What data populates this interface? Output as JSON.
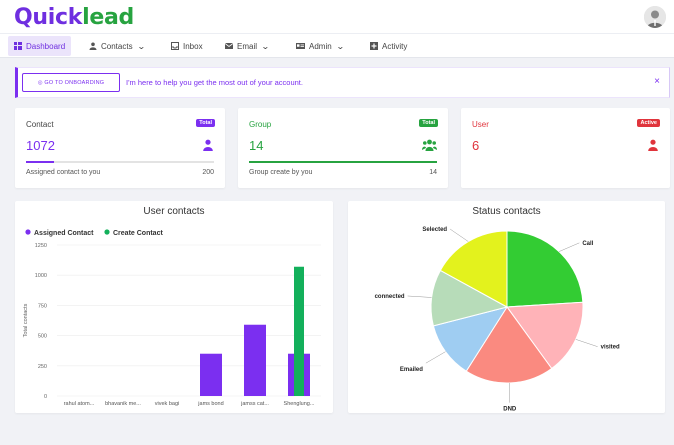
{
  "app": {
    "logo_prefix": "Q",
    "logo_mid": "uick",
    "logo_suffix": "lead"
  },
  "nav": {
    "items": [
      {
        "label": "Dashboard",
        "icon": "grid-icon",
        "active": true
      },
      {
        "label": "Contacts",
        "icon": "person-icon",
        "dropdown": true
      },
      {
        "label": "Inbox",
        "icon": "inbox-icon"
      },
      {
        "label": "Email",
        "icon": "envelope-icon",
        "dropdown": true
      },
      {
        "label": "Admin",
        "icon": "id-card-icon",
        "dropdown": true
      },
      {
        "label": "Activity",
        "icon": "plus-square-icon"
      }
    ]
  },
  "banner": {
    "button_label": "◎ GO TO ONBOARDING",
    "message": "I'm here to help you get the most out of your account.",
    "close": "×"
  },
  "stats": {
    "contact": {
      "title": "Contact",
      "badge": "Total",
      "value": "1072",
      "sub_label": "Assigned contact to you",
      "sub_value": "200",
      "progress": 0.15,
      "color": "#7b2ff0"
    },
    "group": {
      "title": "Group",
      "badge": "Total",
      "value": "14",
      "sub_label": "Group create by you",
      "sub_value": "14",
      "progress": 1.0,
      "color": "#27a340"
    },
    "user": {
      "title": "User",
      "badge": "Active",
      "value": "6",
      "color": "#e0343c"
    }
  },
  "user_chart": {
    "title": "User contacts",
    "chart_data": {
      "type": "bar",
      "title": "User contacts",
      "ylabel": "Total contacts",
      "xlabel": "",
      "ylim": [
        0,
        1250
      ],
      "yticks": [
        "0",
        "250",
        "500",
        "750",
        "1000",
        "1250"
      ],
      "categories": [
        "rahul atom...",
        "bhavanik me...",
        "vivek bagi",
        "jams bond",
        "jamss cat...",
        "Shenglung..."
      ],
      "series": [
        {
          "name": "Assigned Contact",
          "color": "#7b2ff0",
          "values": [
            0,
            0,
            0,
            350,
            590,
            350
          ]
        },
        {
          "name": "Create Contact",
          "color": "#13b05b",
          "values": [
            0,
            0,
            0,
            0,
            0,
            1070
          ]
        }
      ],
      "legend": "top-left",
      "grid": true
    }
  },
  "status_chart": {
    "title": "Status contacts",
    "chart_data": {
      "type": "pie",
      "title": "Status contacts",
      "slices": [
        {
          "label": "Call",
          "value": 24,
          "color": "#33cc33"
        },
        {
          "label": "visited",
          "value": 16,
          "color": "#ffb3b8"
        },
        {
          "label": "DND",
          "value": 19,
          "color": "#fa8a80"
        },
        {
          "label": "Emailed",
          "value": 12,
          "color": "#9fcdf2"
        },
        {
          "label": "connected",
          "value": 12,
          "color": "#b7dcb9"
        },
        {
          "label": "Selected",
          "value": 17,
          "color": "#e3f21d"
        }
      ]
    }
  }
}
